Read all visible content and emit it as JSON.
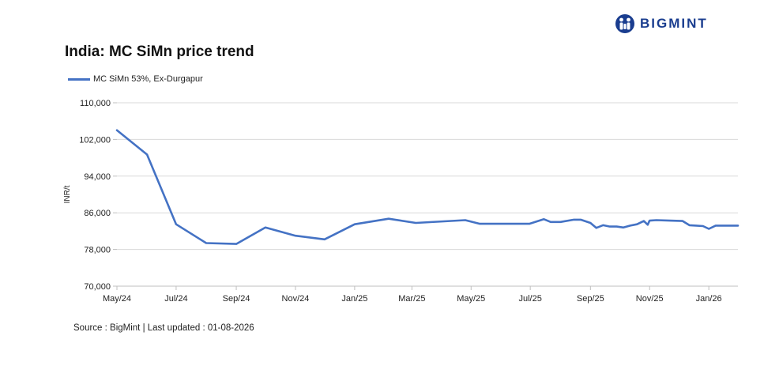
{
  "brand": {
    "name": "BIGMINT",
    "color": "#1a3d8f"
  },
  "title": "India: MC SiMn price trend",
  "source": "Source : BigMint | Last updated : 01-08-2026",
  "chart_data": {
    "type": "line",
    "title": "India: MC SiMn price trend",
    "ylabel": "INR/t",
    "xlabel": "",
    "ylim": [
      70000,
      110000
    ],
    "yticks": [
      70000,
      78000,
      86000,
      94000,
      102000,
      110000
    ],
    "ytick_labels": [
      "70,000",
      "78,000",
      "86,000",
      "94,000",
      "102,000",
      "110,000"
    ],
    "xlim": [
      "2024-05-01",
      "2026-01-31"
    ],
    "xtick_labels": [
      {
        "date": "2024-05-01",
        "label": "May/24"
      },
      {
        "date": "2024-07-01",
        "label": "Jul/24"
      },
      {
        "date": "2024-09-01",
        "label": "Sep/24"
      },
      {
        "date": "2024-11-01",
        "label": "Nov/24"
      },
      {
        "date": "2025-01-01",
        "label": "Jan/25"
      },
      {
        "date": "2025-03-01",
        "label": "Mar/25"
      },
      {
        "date": "2025-05-01",
        "label": "May/25"
      },
      {
        "date": "2025-07-01",
        "label": "Jul/25"
      },
      {
        "date": "2025-09-01",
        "label": "Sep/25"
      },
      {
        "date": "2025-11-01",
        "label": "Nov/25"
      },
      {
        "date": "2026-01-01",
        "label": "Jan/26"
      }
    ],
    "grid": true,
    "legend": "top-left",
    "series": [
      {
        "name": "MC SiMn 53%, Ex-Durgapur",
        "color": "#4472c4",
        "points": [
          {
            "x": "2024-05-01",
            "y": 104000
          },
          {
            "x": "2024-06-01",
            "y": 98700
          },
          {
            "x": "2024-07-01",
            "y": 83500
          },
          {
            "x": "2024-08-01",
            "y": 79400
          },
          {
            "x": "2024-09-01",
            "y": 79200
          },
          {
            "x": "2024-10-01",
            "y": 82800
          },
          {
            "x": "2024-11-01",
            "y": 81000
          },
          {
            "x": "2024-12-01",
            "y": 80200
          },
          {
            "x": "2025-01-01",
            "y": 83500
          },
          {
            "x": "2025-02-05",
            "y": 84700
          },
          {
            "x": "2025-03-05",
            "y": 83800
          },
          {
            "x": "2025-04-25",
            "y": 84400
          },
          {
            "x": "2025-05-10",
            "y": 83600
          },
          {
            "x": "2025-06-30",
            "y": 83600
          },
          {
            "x": "2025-07-15",
            "y": 84600
          },
          {
            "x": "2025-07-22",
            "y": 84000
          },
          {
            "x": "2025-08-01",
            "y": 84000
          },
          {
            "x": "2025-08-15",
            "y": 84500
          },
          {
            "x": "2025-08-22",
            "y": 84500
          },
          {
            "x": "2025-09-01",
            "y": 83800
          },
          {
            "x": "2025-09-07",
            "y": 82700
          },
          {
            "x": "2025-09-14",
            "y": 83300
          },
          {
            "x": "2025-09-21",
            "y": 83000
          },
          {
            "x": "2025-09-28",
            "y": 83000
          },
          {
            "x": "2025-10-05",
            "y": 82800
          },
          {
            "x": "2025-10-12",
            "y": 83200
          },
          {
            "x": "2025-10-19",
            "y": 83500
          },
          {
            "x": "2025-10-26",
            "y": 84200
          },
          {
            "x": "2025-10-30",
            "y": 83400
          },
          {
            "x": "2025-11-01",
            "y": 84300
          },
          {
            "x": "2025-11-08",
            "y": 84400
          },
          {
            "x": "2025-11-22",
            "y": 84300
          },
          {
            "x": "2025-12-05",
            "y": 84200
          },
          {
            "x": "2025-12-12",
            "y": 83300
          },
          {
            "x": "2025-12-19",
            "y": 83200
          },
          {
            "x": "2025-12-26",
            "y": 83100
          },
          {
            "x": "2026-01-01",
            "y": 82500
          },
          {
            "x": "2026-01-08",
            "y": 83200
          },
          {
            "x": "2026-01-31",
            "y": 83200
          }
        ]
      }
    ]
  }
}
